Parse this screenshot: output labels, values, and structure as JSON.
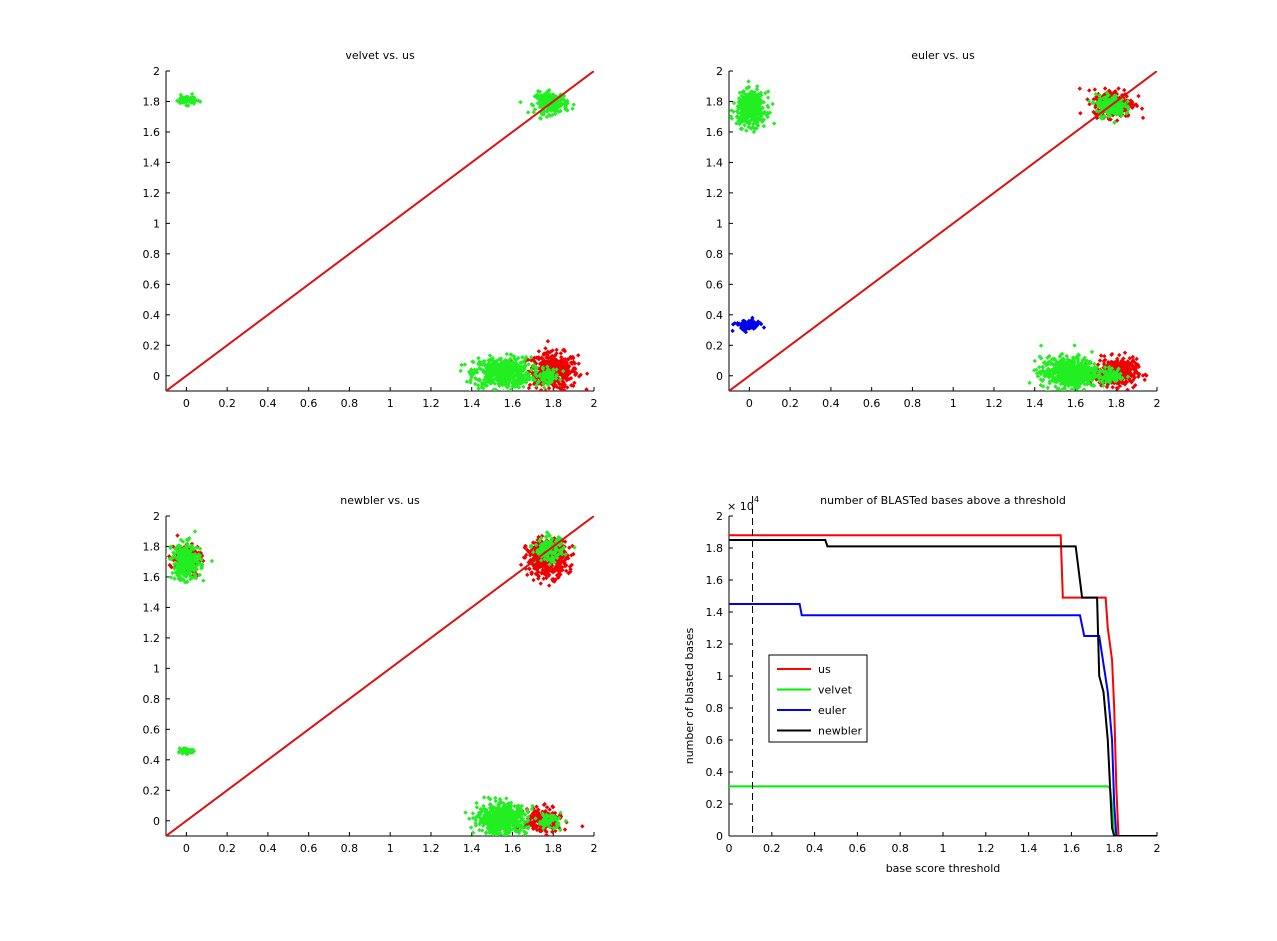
{
  "colors": {
    "us": "#ff0000",
    "velvet": "#00ee00",
    "euler": "#0000ff",
    "newbler": "#000000",
    "scatter_red": "#ee0000",
    "scatter_green": "#22ee22",
    "scatter_blue": "#0000ee"
  },
  "chart_data": [
    {
      "type": "scatter",
      "title": "velvet vs. us",
      "xlabel": "",
      "ylabel": "",
      "xlim": [
        -0.1,
        2
      ],
      "ylim": [
        -0.1,
        2
      ],
      "xticks": [
        0,
        0.2,
        0.4,
        0.6,
        0.8,
        1,
        1.2,
        1.4,
        1.6,
        1.8,
        2
      ],
      "xticklabels": [
        "0",
        "0.2",
        "0.4",
        "0.6",
        "0.8",
        "1",
        "1.2",
        "1.4",
        "1.6",
        "1.8",
        "2"
      ],
      "yticks": [
        0,
        0.2,
        0.4,
        0.6,
        0.8,
        1,
        1.2,
        1.4,
        1.6,
        1.8,
        2
      ],
      "yticklabels": [
        "0",
        "0.2",
        "0.4",
        "0.6",
        "0.8",
        "1",
        "1.2",
        "1.4",
        "1.6",
        "1.8",
        "2"
      ],
      "reference_line": {
        "from": [
          -0.1,
          -0.1
        ],
        "to": [
          2,
          2
        ],
        "color": "#dd1111"
      },
      "clusters": [
        {
          "color": "red",
          "center": [
            1.8,
            0.03
          ],
          "spread": [
            0.06,
            0.06
          ],
          "count": 420
        },
        {
          "color": "green",
          "center": [
            1.55,
            0.02
          ],
          "spread": [
            0.07,
            0.05
          ],
          "count": 520
        },
        {
          "color": "green",
          "center": [
            1.77,
            0.0
          ],
          "spread": [
            0.03,
            0.025
          ],
          "count": 70
        },
        {
          "color": "green",
          "center": [
            1.79,
            1.79
          ],
          "spread": [
            0.04,
            0.035
          ],
          "count": 180
        },
        {
          "color": "green",
          "center": [
            0.0,
            1.81
          ],
          "spread": [
            0.025,
            0.015
          ],
          "count": 60
        }
      ]
    },
    {
      "type": "scatter",
      "title": "euler vs. us",
      "xlabel": "",
      "ylabel": "",
      "xlim": [
        -0.1,
        2
      ],
      "ylim": [
        -0.1,
        2
      ],
      "xticks": [
        0,
        0.2,
        0.4,
        0.6,
        0.8,
        1,
        1.2,
        1.4,
        1.6,
        1.8,
        2
      ],
      "xticklabels": [
        "0",
        "0.2",
        "0.4",
        "0.6",
        "0.8",
        "1",
        "1.2",
        "1.4",
        "1.6",
        "1.8",
        "2"
      ],
      "yticks": [
        0,
        0.2,
        0.4,
        0.6,
        0.8,
        1,
        1.2,
        1.4,
        1.6,
        1.8,
        2
      ],
      "yticklabels": [
        "0",
        "0.2",
        "0.4",
        "0.6",
        "0.8",
        "1",
        "1.2",
        "1.4",
        "1.6",
        "1.8",
        "2"
      ],
      "reference_line": {
        "from": [
          -0.1,
          -0.1
        ],
        "to": [
          2,
          2
        ],
        "color": "#dd1111"
      },
      "clusters": [
        {
          "color": "red",
          "center": [
            1.8,
            0.02
          ],
          "spread": [
            0.05,
            0.045
          ],
          "count": 360
        },
        {
          "color": "red",
          "center": [
            1.79,
            1.79
          ],
          "spread": [
            0.05,
            0.045
          ],
          "count": 260
        },
        {
          "color": "green",
          "center": [
            1.57,
            0.02
          ],
          "spread": [
            0.07,
            0.05
          ],
          "count": 600
        },
        {
          "color": "green",
          "center": [
            1.78,
            0.0
          ],
          "spread": [
            0.03,
            0.025
          ],
          "count": 60
        },
        {
          "color": "green",
          "center": [
            1.77,
            1.77
          ],
          "spread": [
            0.035,
            0.035
          ],
          "count": 200
        },
        {
          "color": "green",
          "center": [
            0.01,
            1.75
          ],
          "spread": [
            0.035,
            0.055
          ],
          "count": 420
        },
        {
          "color": "blue",
          "center": [
            -0.01,
            0.33
          ],
          "spread": [
            0.03,
            0.018
          ],
          "count": 90
        }
      ]
    },
    {
      "type": "scatter",
      "title": "newbler vs. us",
      "xlabel": "",
      "ylabel": "",
      "xlim": [
        -0.1,
        2
      ],
      "ylim": [
        -0.1,
        2
      ],
      "xticks": [
        0,
        0.2,
        0.4,
        0.6,
        0.8,
        1,
        1.2,
        1.4,
        1.6,
        1.8,
        2
      ],
      "xticklabels": [
        "0",
        "0.2",
        "0.4",
        "0.6",
        "0.8",
        "1",
        "1.2",
        "1.4",
        "1.6",
        "1.8",
        "2"
      ],
      "yticks": [
        0,
        0.2,
        0.4,
        0.6,
        0.8,
        1,
        1.2,
        1.4,
        1.6,
        1.8,
        2
      ],
      "yticklabels": [
        "0",
        "0.2",
        "0.4",
        "0.6",
        "0.8",
        "1",
        "1.2",
        "1.4",
        "1.6",
        "1.8",
        "2"
      ],
      "reference_line": {
        "from": [
          -0.1,
          -0.1
        ],
        "to": [
          2,
          2
        ],
        "color": "#dd1111"
      },
      "clusters": [
        {
          "color": "red",
          "center": [
            1.75,
            0.0
          ],
          "spread": [
            0.045,
            0.04
          ],
          "count": 220
        },
        {
          "color": "red",
          "center": [
            1.77,
            1.72
          ],
          "spread": [
            0.05,
            0.06
          ],
          "count": 420
        },
        {
          "color": "red",
          "center": [
            0.0,
            1.72
          ],
          "spread": [
            0.035,
            0.05
          ],
          "count": 160
        },
        {
          "color": "green",
          "center": [
            1.55,
            0.01
          ],
          "spread": [
            0.06,
            0.05
          ],
          "count": 560
        },
        {
          "color": "green",
          "center": [
            1.78,
            0.0
          ],
          "spread": [
            0.03,
            0.025
          ],
          "count": 60
        },
        {
          "color": "green",
          "center": [
            1.78,
            1.78
          ],
          "spread": [
            0.035,
            0.04
          ],
          "count": 140
        },
        {
          "color": "green",
          "center": [
            0.0,
            1.7
          ],
          "spread": [
            0.035,
            0.06
          ],
          "count": 300
        },
        {
          "color": "green",
          "center": [
            0.0,
            0.46
          ],
          "spread": [
            0.02,
            0.012
          ],
          "count": 40
        }
      ]
    },
    {
      "type": "line",
      "title": "number of BLASTed bases above a threshold",
      "xlabel": "base score threshold",
      "ylabel": "number of blasted bases",
      "exponent_label": "× 10",
      "exponent_power": "4",
      "xlim": [
        0,
        2
      ],
      "ylim": [
        0,
        2
      ],
      "xticks": [
        0,
        0.2,
        0.4,
        0.6,
        0.8,
        1,
        1.2,
        1.4,
        1.6,
        1.8,
        2
      ],
      "xticklabels": [
        "0",
        "0.2",
        "0.4",
        "0.6",
        "0.8",
        "1",
        "1.2",
        "1.4",
        "1.6",
        "1.8",
        "2"
      ],
      "yticks": [
        0,
        0.2,
        0.4,
        0.6,
        0.8,
        1,
        1.2,
        1.4,
        1.6,
        1.8,
        2
      ],
      "yticklabels": [
        "0",
        "0.2",
        "0.4",
        "0.6",
        "0.8",
        "1",
        "1.2",
        "1.4",
        "1.6",
        "1.8",
        "2"
      ],
      "vertical_marker_x": 0.11,
      "legend": {
        "position": "middle-left",
        "entries": [
          "us",
          "velvet",
          "euler",
          "newbler"
        ]
      },
      "series": [
        {
          "name": "us",
          "color": "#ff0000",
          "x": [
            0,
            1.55,
            1.56,
            1.76,
            1.77,
            1.79,
            1.8,
            1.81,
            1.82,
            1.83,
            2.0
          ],
          "y": [
            1.88,
            1.88,
            1.49,
            1.49,
            1.3,
            1.1,
            0.8,
            0.3,
            0.0,
            0.0,
            0.0
          ]
        },
        {
          "name": "velvet",
          "color": "#00ee00",
          "x": [
            0,
            1.76,
            1.77,
            1.78,
            1.79,
            1.8,
            2.0
          ],
          "y": [
            0.31,
            0.31,
            0.31,
            0.3,
            0.2,
            0.0,
            0.0
          ]
        },
        {
          "name": "euler",
          "color": "#0000ff",
          "x": [
            0,
            0.33,
            0.34,
            1.64,
            1.66,
            1.7,
            1.73,
            1.77,
            1.79,
            1.8,
            1.81,
            2.0
          ],
          "y": [
            1.45,
            1.45,
            1.38,
            1.38,
            1.25,
            1.25,
            1.25,
            0.9,
            0.6,
            0.2,
            0.0,
            0.0
          ]
        },
        {
          "name": "newbler",
          "color": "#000000",
          "x": [
            0,
            0.45,
            0.46,
            1.62,
            1.65,
            1.72,
            1.73,
            1.75,
            1.77,
            1.79,
            1.8,
            2.0
          ],
          "y": [
            1.85,
            1.85,
            1.81,
            1.81,
            1.49,
            1.49,
            1.0,
            0.9,
            0.6,
            0.05,
            0.0,
            0.0
          ]
        }
      ]
    }
  ]
}
